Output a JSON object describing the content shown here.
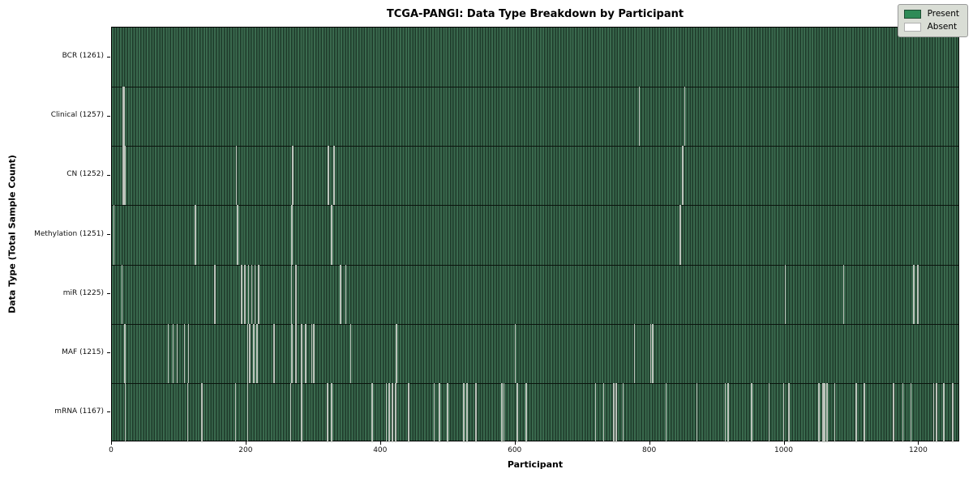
{
  "chart_data": {
    "type": "heatmap",
    "title": "TCGA-PANGI: Data Type Breakdown by Participant",
    "xlabel": "Participant",
    "ylabel": "Data Type (Total Sample Count)",
    "x_ticks": [
      0,
      200,
      400,
      600,
      800,
      1000,
      1200
    ],
    "x_range": [
      0,
      1261
    ],
    "n_participants_approx": 1261,
    "grid": false,
    "legend_position": "upper right",
    "legend": [
      {
        "label": "Present",
        "color": "#2e8b57"
      },
      {
        "label": "Absent",
        "color": "#ffffff"
      }
    ],
    "colors": {
      "present_fill": "#2e8b57",
      "bar_stripe_light": "#3a6a4e",
      "bar_stripe_dark": "#1e3a2a",
      "absent_stripe": "#bcc3bb"
    },
    "rows": [
      {
        "label": "BCR (1261)",
        "data_type": "BCR",
        "total_sample_count": 1261,
        "absent_participants_approx": []
      },
      {
        "label": "Clinical (1257)",
        "data_type": "Clinical",
        "total_sample_count": 1257,
        "absent_participants_approx": [
          16,
          17,
          783,
          851
        ]
      },
      {
        "label": "CN (1252)",
        "data_type": "CN",
        "total_sample_count": 1252,
        "absent_participants_approx": [
          16,
          18,
          184,
          268,
          321,
          329,
          848
        ]
      },
      {
        "label": "Methylation (1251)",
        "data_type": "Methylation",
        "total_sample_count": 1251,
        "absent_participants_approx": [
          2,
          123,
          186,
          267,
          326,
          844
        ]
      },
      {
        "label": "miR (1225)",
        "data_type": "miR",
        "total_sample_count": 1225,
        "absent_participants_approx": [
          14,
          152,
          192,
          197,
          202,
          207,
          212,
          217,
          266,
          273,
          339,
          347,
          1000,
          1087,
          1191,
          1197
        ]
      },
      {
        "label": "MAF (1215)",
        "data_type": "MAF",
        "total_sample_count": 1215,
        "absent_participants_approx": [
          18,
          83,
          90,
          96,
          107,
          113,
          201,
          204,
          210,
          215,
          240,
          267,
          273,
          281,
          287,
          296,
          299,
          354,
          422,
          599,
          776,
          800,
          803
        ]
      },
      {
        "label": "mRNA (1167)",
        "data_type": "mRNA",
        "total_sample_count": 1167,
        "absent_participants_approx": [
          19,
          112,
          133,
          183,
          201,
          265,
          281,
          320,
          326,
          386,
          407,
          411,
          416,
          421,
          440,
          478,
          486,
          498,
          522,
          527,
          540,
          579,
          582,
          602,
          615,
          718,
          730,
          745,
          749,
          759,
          823,
          869,
          911,
          915,
          950,
          976,
          998,
          1006,
          1050,
          1056,
          1059,
          1062,
          1074,
          1106,
          1118,
          1161,
          1175,
          1187,
          1221,
          1225,
          1236,
          1249
        ]
      }
    ]
  }
}
